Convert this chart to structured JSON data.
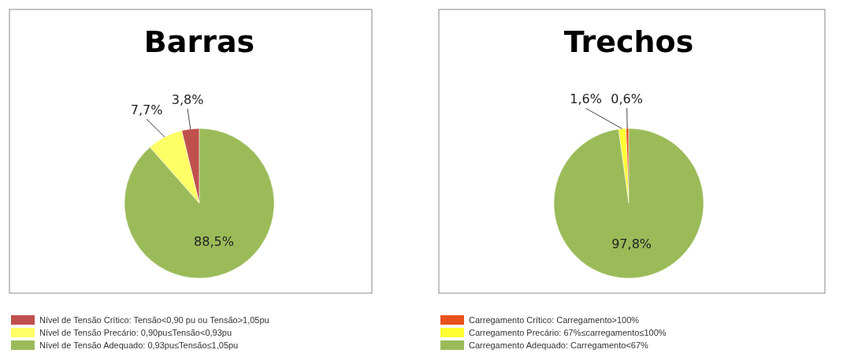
{
  "chart_data": [
    {
      "type": "pie",
      "title": "Barras",
      "categories": [
        "Nível de Tensão Crítico: Tensão<0,90 pu ou Tensão>1,05pu",
        "Nível de Tensão Precário: 0,90pu≤Tensão<0,93pu",
        "Nível de Tensão Adequado: 0,93pu≤Tensão≤1,05pu"
      ],
      "values": [
        3.8,
        7.7,
        88.5
      ],
      "value_labels": [
        "3,8%",
        "7,7%",
        "88,5%"
      ],
      "colors": [
        "#c0504d",
        "#ffff66",
        "#9bbb59"
      ],
      "legend": "bottom"
    },
    {
      "type": "pie",
      "title": "Trechos",
      "categories": [
        "Carregamento Crítico: Carregamento>100%",
        "Carregamento Precário: 67%≤carregamento≤100%",
        "Carregamento Adequado: Carregamento<67%"
      ],
      "values": [
        0.6,
        1.6,
        97.8
      ],
      "value_labels": [
        "0,6%",
        "1,6%",
        "97,8%"
      ],
      "colors": [
        "#e8501c",
        "#ffff33",
        "#9bbb59"
      ],
      "legend": "bottom"
    }
  ]
}
